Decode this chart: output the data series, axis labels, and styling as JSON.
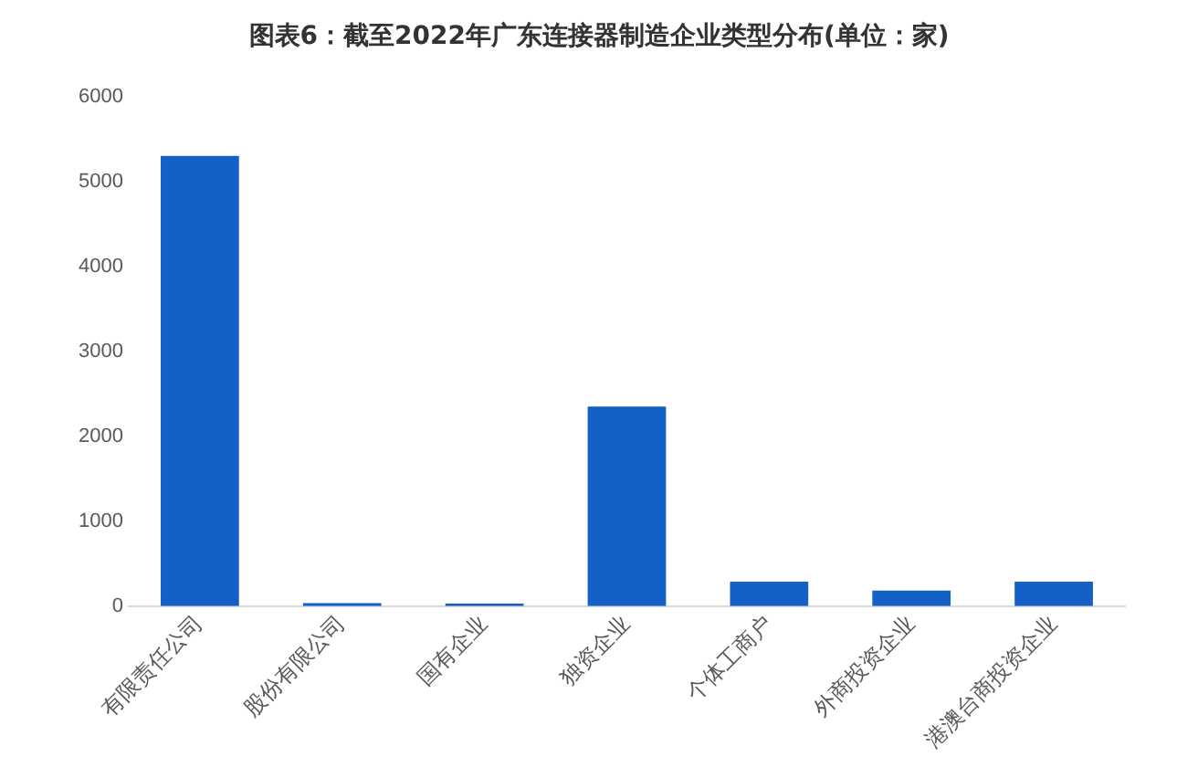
{
  "chart_data": {
    "type": "bar",
    "title": "图表6：截至2022年广东连接器制造企业类型分布(单位：家)",
    "categories": [
      "有限责任公司",
      "股份有限公司",
      "国有企业",
      "独资企业",
      "个体工商户",
      "外商投资企业",
      "港澳台商投资企业"
    ],
    "values": [
      5300,
      35,
      30,
      2350,
      290,
      185,
      290
    ],
    "color": "#1560c6",
    "ylim": [
      0,
      6000
    ],
    "yticks": [
      0,
      1000,
      2000,
      3000,
      4000,
      5000,
      6000
    ],
    "grid": false,
    "legend": false
  }
}
